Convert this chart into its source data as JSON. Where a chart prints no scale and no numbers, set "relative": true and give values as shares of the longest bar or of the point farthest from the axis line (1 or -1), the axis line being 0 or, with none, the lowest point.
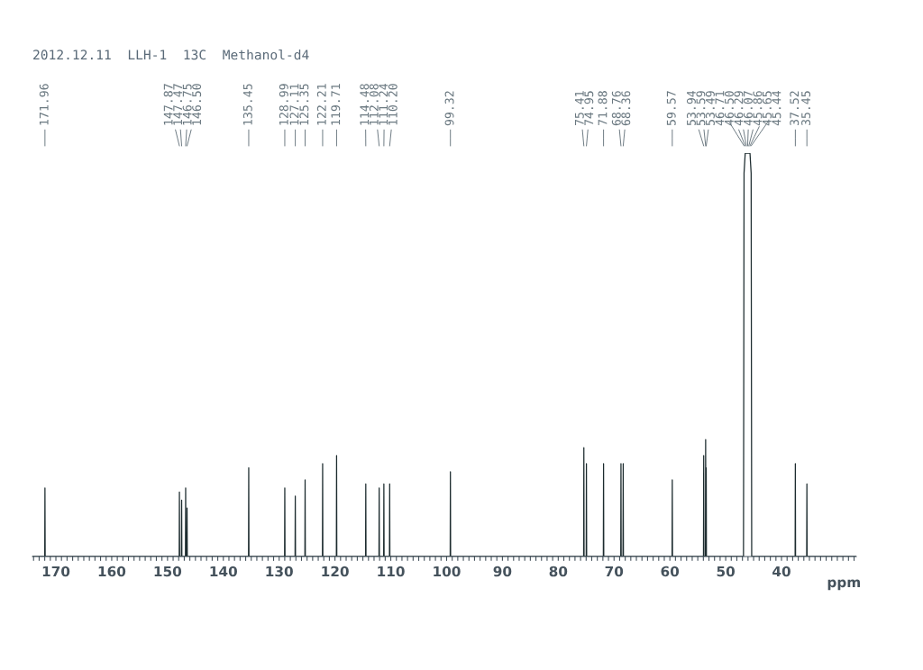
{
  "chart_data": {
    "type": "line",
    "relative": true,
    "title": "2012.12.11  LLH-1  13C  Methanol-d4",
    "xlabel": "ppm",
    "xlim": [
      174.2,
      26.6
    ],
    "xticks": [
      {
        "value": 174,
        "label": null
      },
      {
        "value": 173,
        "label": null
      },
      {
        "value": 172,
        "label": null
      },
      {
        "value": 171,
        "label": null
      },
      170,
      {
        "value": 169,
        "label": null
      },
      {
        "value": 168,
        "label": null
      },
      {
        "value": 167,
        "label": null
      },
      {
        "value": 166,
        "label": null
      },
      {
        "value": 165,
        "label": null
      },
      {
        "value": 164,
        "label": null
      },
      {
        "value": 163,
        "label": null
      },
      {
        "value": 162,
        "label": null
      },
      {
        "value": 161,
        "label": null
      },
      160,
      {
        "value": 159,
        "label": null
      },
      {
        "value": 158,
        "label": null
      },
      {
        "value": 157,
        "label": null
      },
      {
        "value": 156,
        "label": null
      },
      {
        "value": 155,
        "label": null
      },
      {
        "value": 154,
        "label": null
      },
      {
        "value": 153,
        "label": null
      },
      {
        "value": 152,
        "label": null
      },
      {
        "value": 151,
        "label": null
      },
      150,
      {
        "value": 149,
        "label": null
      },
      {
        "value": 148,
        "label": null
      },
      {
        "value": 147,
        "label": null
      },
      {
        "value": 146,
        "label": null
      },
      {
        "value": 145,
        "label": null
      },
      {
        "value": 144,
        "label": null
      },
      {
        "value": 143,
        "label": null
      },
      {
        "value": 142,
        "label": null
      },
      {
        "value": 141,
        "label": null
      },
      140,
      {
        "value": 139,
        "label": null
      },
      {
        "value": 138,
        "label": null
      },
      {
        "value": 137,
        "label": null
      },
      {
        "value": 136,
        "label": null
      },
      {
        "value": 135,
        "label": null
      },
      {
        "value": 134,
        "label": null
      },
      {
        "value": 133,
        "label": null
      },
      {
        "value": 132,
        "label": null
      },
      {
        "value": 131,
        "label": null
      },
      130,
      {
        "value": 129,
        "label": null
      },
      {
        "value": 128,
        "label": null
      },
      {
        "value": 127,
        "label": null
      },
      {
        "value": 126,
        "label": null
      },
      {
        "value": 125,
        "label": null
      },
      {
        "value": 124,
        "label": null
      },
      {
        "value": 123,
        "label": null
      },
      {
        "value": 122,
        "label": null
      },
      {
        "value": 121,
        "label": null
      },
      120,
      {
        "value": 119,
        "label": null
      },
      {
        "value": 118,
        "label": null
      },
      {
        "value": 117,
        "label": null
      },
      {
        "value": 116,
        "label": null
      },
      {
        "value": 115,
        "label": null
      },
      {
        "value": 114,
        "label": null
      },
      {
        "value": 113,
        "label": null
      },
      {
        "value": 112,
        "label": null
      },
      {
        "value": 111,
        "label": null
      },
      110,
      {
        "value": 109,
        "label": null
      },
      {
        "value": 108,
        "label": null
      },
      {
        "value": 107,
        "label": null
      },
      {
        "value": 106,
        "label": null
      },
      {
        "value": 105,
        "label": null
      },
      {
        "value": 104,
        "label": null
      },
      {
        "value": 103,
        "label": null
      },
      {
        "value": 102,
        "label": null
      },
      {
        "value": 101,
        "label": null
      },
      100,
      {
        "value": 99,
        "label": null
      },
      {
        "value": 98,
        "label": null
      },
      {
        "value": 97,
        "label": null
      },
      {
        "value": 96,
        "label": null
      },
      {
        "value": 95,
        "label": null
      },
      {
        "value": 94,
        "label": null
      },
      {
        "value": 93,
        "label": null
      },
      {
        "value": 92,
        "label": null
      },
      {
        "value": 91,
        "label": null
      },
      90,
      {
        "value": 89,
        "label": null
      },
      {
        "value": 88,
        "label": null
      },
      {
        "value": 87,
        "label": null
      },
      {
        "value": 86,
        "label": null
      },
      {
        "value": 85,
        "label": null
      },
      {
        "value": 84,
        "label": null
      },
      {
        "value": 83,
        "label": null
      },
      {
        "value": 82,
        "label": null
      },
      {
        "value": 81,
        "label": null
      },
      80,
      {
        "value": 79,
        "label": null
      },
      {
        "value": 78,
        "label": null
      },
      {
        "value": 77,
        "label": null
      },
      {
        "value": 76,
        "label": null
      },
      {
        "value": 75,
        "label": null
      },
      {
        "value": 74,
        "label": null
      },
      {
        "value": 73,
        "label": null
      },
      {
        "value": 72,
        "label": null
      },
      {
        "value": 71,
        "label": null
      },
      70,
      {
        "value": 69,
        "label": null
      },
      {
        "value": 68,
        "label": null
      },
      {
        "value": 67,
        "label": null
      },
      {
        "value": 66,
        "label": null
      },
      {
        "value": 65,
        "label": null
      },
      {
        "value": 64,
        "label": null
      },
      {
        "value": 63,
        "label": null
      },
      {
        "value": 62,
        "label": null
      },
      {
        "value": 61,
        "label": null
      },
      60,
      {
        "value": 59,
        "label": null
      },
      {
        "value": 58,
        "label": null
      },
      {
        "value": 57,
        "label": null
      },
      {
        "value": 56,
        "label": null
      },
      {
        "value": 55,
        "label": null
      },
      {
        "value": 54,
        "label": null
      },
      {
        "value": 53,
        "label": null
      },
      {
        "value": 52,
        "label": null
      },
      {
        "value": 51,
        "label": null
      },
      50,
      {
        "value": 49,
        "label": null
      },
      {
        "value": 48,
        "label": null
      },
      {
        "value": 47,
        "label": null
      },
      {
        "value": 46,
        "label": null
      },
      {
        "value": 45,
        "label": null
      },
      {
        "value": 44,
        "label": null
      },
      {
        "value": 43,
        "label": null
      },
      {
        "value": 42,
        "label": null
      },
      {
        "value": 41,
        "label": null
      },
      40,
      {
        "value": 39,
        "label": null
      },
      {
        "value": 38,
        "label": null
      },
      {
        "value": 37,
        "label": null
      },
      {
        "value": 36,
        "label": null
      },
      {
        "value": 35,
        "label": null
      },
      {
        "value": 34,
        "label": null
      },
      {
        "value": 33,
        "label": null
      },
      {
        "value": 32,
        "label": null
      },
      {
        "value": 31,
        "label": null
      },
      {
        "value": 30,
        "label": null
      },
      {
        "value": 29,
        "label": null
      },
      {
        "value": 28,
        "label": null
      },
      {
        "value": 27,
        "label": null
      }
    ],
    "series": [
      {
        "color": "#1c2b2e",
        "x": [
          174.2,
          172.0,
          171.96,
          171.92,
          147.91,
          147.87,
          147.83,
          147.51,
          147.47,
          147.43,
          146.79,
          146.75,
          146.71,
          146.54,
          146.5,
          146.46,
          135.49,
          135.45,
          135.41,
          129.03,
          128.99,
          128.95,
          127.15,
          127.11,
          127.07,
          125.39,
          125.35,
          125.31,
          122.25,
          122.21,
          122.17,
          119.75,
          119.71,
          119.67,
          114.52,
          114.48,
          114.44,
          112.12,
          112.08,
          112.04,
          111.28,
          111.24,
          111.2,
          110.24,
          110.2,
          110.16,
          99.36,
          99.32,
          99.28,
          75.45,
          75.41,
          75.37,
          74.99,
          74.95,
          74.91,
          71.92,
          71.88,
          71.84,
          68.8,
          68.76,
          68.72,
          68.4,
          68.36,
          68.32,
          59.61,
          59.57,
          59.53,
          53.98,
          53.94,
          53.9,
          53.63,
          53.59,
          53.55,
          53.53,
          53.49,
          53.45,
          46.81,
          46.71,
          46.5,
          46.29,
          46.07,
          45.86,
          45.65,
          45.44,
          45.34,
          37.56,
          37.52,
          37.48,
          35.49,
          35.45,
          35.41,
          26.6
        ],
        "values": [
          0,
          0,
          0.17,
          0,
          0,
          0.16,
          0,
          0,
          0.14,
          0,
          0,
          0.17,
          0,
          0,
          0.12,
          0,
          0,
          0.22,
          0,
          0,
          0.17,
          0,
          0,
          0.15,
          0,
          0,
          0.19,
          0,
          0,
          0.23,
          0,
          0,
          0.25,
          0,
          0,
          0.18,
          0,
          0,
          0.17,
          0,
          0,
          0.18,
          0,
          0,
          0.18,
          0,
          0,
          0.21,
          0,
          0,
          0.27,
          0,
          0,
          0.23,
          0,
          0,
          0.23,
          0,
          0,
          0.23,
          0,
          0,
          0.23,
          0,
          0,
          0.19,
          0,
          0,
          0.25,
          0,
          0,
          0.29,
          0,
          0,
          0.22,
          0,
          0,
          0.95,
          1,
          1,
          1,
          1,
          1,
          0.95,
          0,
          0,
          0.23,
          0,
          0,
          0.18,
          0,
          0
        ]
      }
    ],
    "annotations": [
      "171.96",
      "147.87",
      "147.47",
      "146.75",
      "146.50",
      "135.45",
      "128.99",
      "127.11",
      "125.35",
      "122.21",
      "119.71",
      "114.48",
      "112.08",
      "111.24",
      "110.20",
      "99.32",
      "75.41",
      "74.95",
      "71.88",
      "68.76",
      "68.36",
      "59.57",
      "53.94",
      "53.59",
      "53.49",
      "46.71",
      "46.50",
      "46.29",
      "46.07",
      "45.86",
      "45.65",
      "45.44",
      "37.52",
      "35.45"
    ],
    "grid": false,
    "legend": false,
    "marker": "none",
    "line_style": "solid"
  }
}
